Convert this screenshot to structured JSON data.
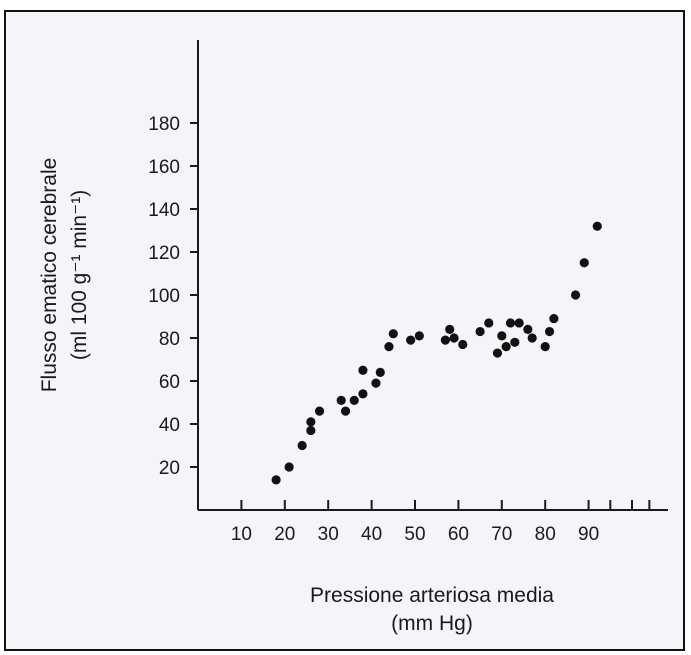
{
  "chart_data": {
    "type": "scatter",
    "title": "",
    "xlabel_line1": "Pressione arteriosa media",
    "xlabel_line2": "(mm Hg)",
    "ylabel_line1": "Flusso ematico cerebrale",
    "ylabel_line2": "(ml 100 g⁻¹ min⁻¹)",
    "xlim": [
      0,
      105
    ],
    "ylim": [
      0,
      200
    ],
    "xticks": [
      10,
      20,
      30,
      40,
      50,
      60,
      70,
      80,
      90
    ],
    "yticks": [
      20,
      40,
      60,
      80,
      100,
      120,
      140,
      160,
      180
    ],
    "grid": false,
    "marker_color": "#111111",
    "points": [
      {
        "x": 18,
        "y": 14
      },
      {
        "x": 21,
        "y": 20
      },
      {
        "x": 24,
        "y": 30
      },
      {
        "x": 26,
        "y": 37
      },
      {
        "x": 26,
        "y": 41
      },
      {
        "x": 28,
        "y": 46
      },
      {
        "x": 33,
        "y": 51
      },
      {
        "x": 34,
        "y": 46
      },
      {
        "x": 36,
        "y": 51
      },
      {
        "x": 38,
        "y": 54
      },
      {
        "x": 38,
        "y": 65
      },
      {
        "x": 41,
        "y": 59
      },
      {
        "x": 42,
        "y": 64
      },
      {
        "x": 44,
        "y": 76
      },
      {
        "x": 45,
        "y": 82
      },
      {
        "x": 49,
        "y": 79
      },
      {
        "x": 51,
        "y": 81
      },
      {
        "x": 57,
        "y": 79
      },
      {
        "x": 58,
        "y": 84
      },
      {
        "x": 59,
        "y": 80
      },
      {
        "x": 61,
        "y": 77
      },
      {
        "x": 65,
        "y": 83
      },
      {
        "x": 67,
        "y": 87
      },
      {
        "x": 69,
        "y": 73
      },
      {
        "x": 70,
        "y": 81
      },
      {
        "x": 71,
        "y": 76
      },
      {
        "x": 72,
        "y": 87
      },
      {
        "x": 73,
        "y": 78
      },
      {
        "x": 74,
        "y": 87
      },
      {
        "x": 76,
        "y": 84
      },
      {
        "x": 77,
        "y": 80
      },
      {
        "x": 80,
        "y": 76
      },
      {
        "x": 81,
        "y": 83
      },
      {
        "x": 82,
        "y": 89
      },
      {
        "x": 87,
        "y": 100
      },
      {
        "x": 89,
        "y": 115
      },
      {
        "x": 92,
        "y": 132
      }
    ]
  }
}
